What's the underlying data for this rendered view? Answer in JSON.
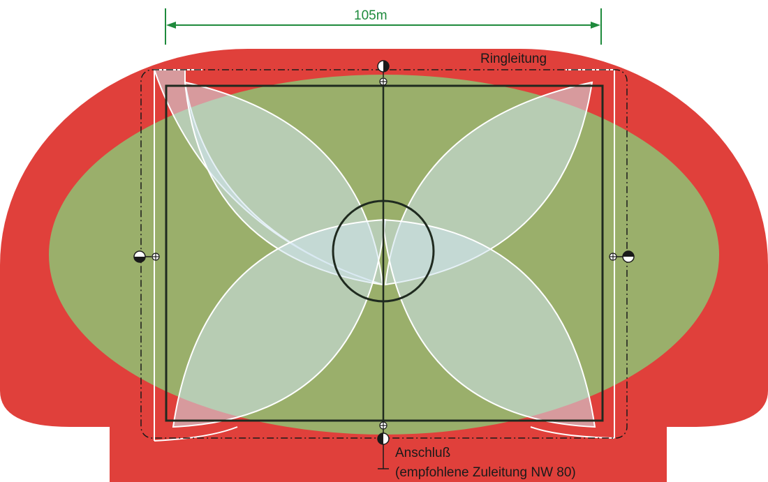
{
  "dimension_label": "105m",
  "ring_label": "Ringleitung",
  "connection_label": "Anschluß",
  "feed_label": "(empfohlene Zuleitung NW 80)",
  "colors": {
    "track": "#e0403b",
    "field": "#9aaf6b",
    "spray_fill": "#cfe3ef",
    "spray_stroke": "#ffffff",
    "lines": "#1f2a1f",
    "dimension": "#1e8a3c",
    "text": "#1a1a1a"
  },
  "icons": [
    "sprinkler-icon",
    "valve-icon",
    "dimension-arrow-icon"
  ]
}
